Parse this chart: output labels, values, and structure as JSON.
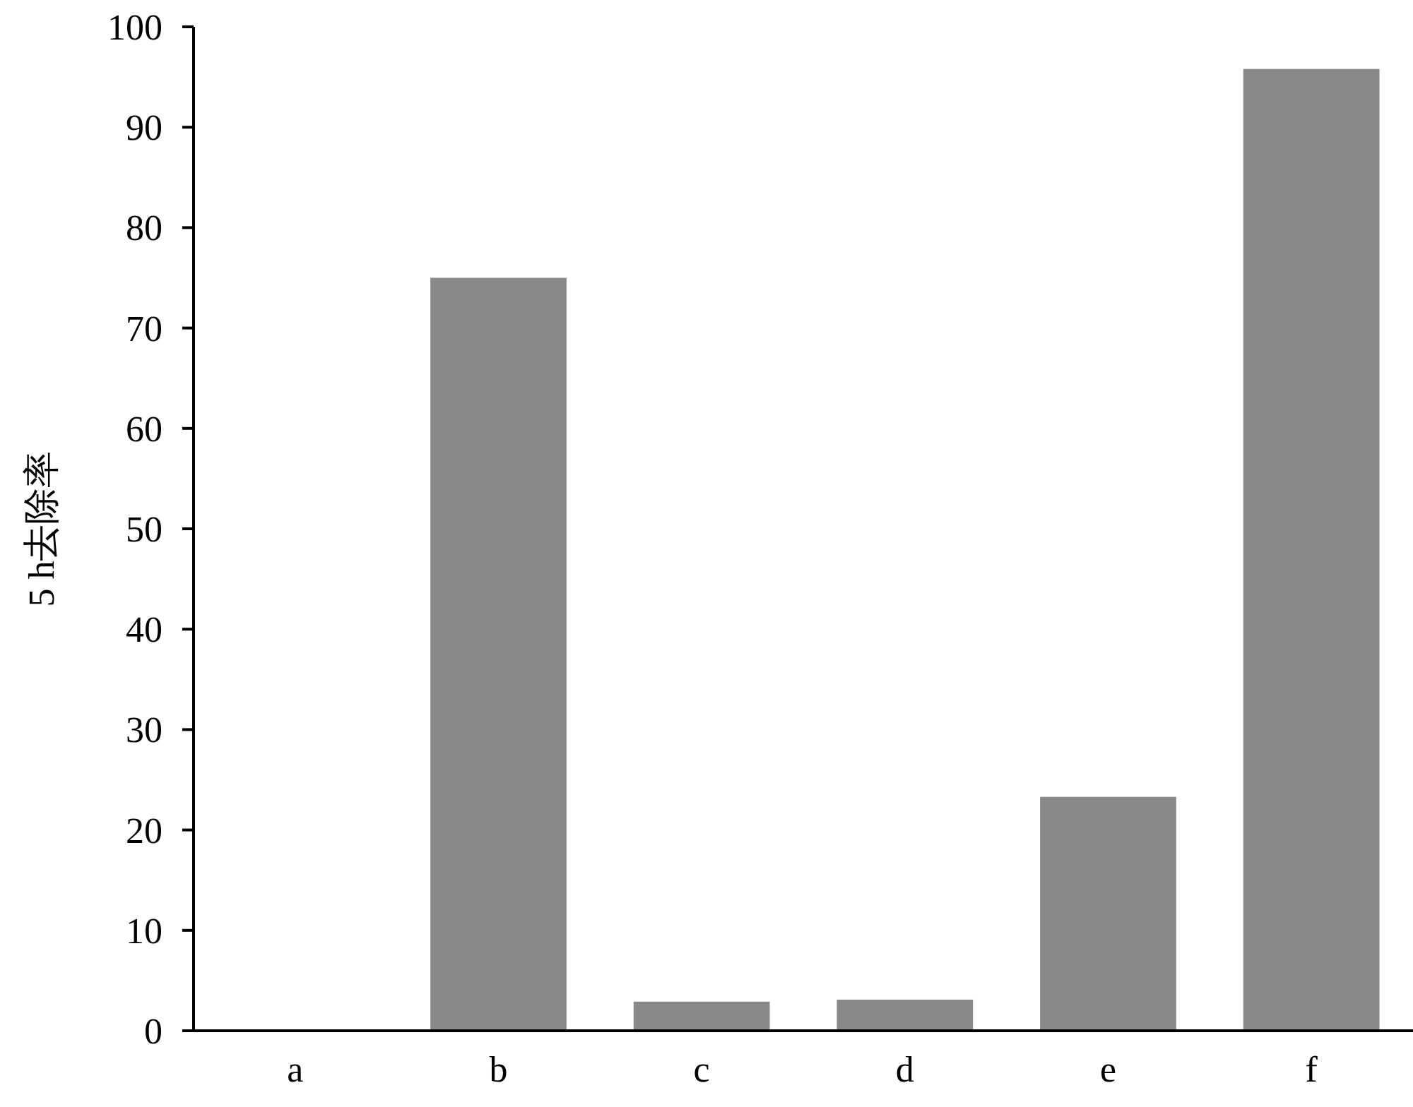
{
  "chart_data": {
    "type": "bar",
    "ylabel": "5 h去除率",
    "categories": [
      "a",
      "b",
      "c",
      "d",
      "e",
      "f"
    ],
    "values": [
      0,
      75,
      2.9,
      3.1,
      23.3,
      95.8
    ],
    "color": "#898989",
    "ylim": [
      0,
      100
    ],
    "yticks": [
      0,
      10,
      20,
      30,
      40,
      50,
      60,
      70,
      80,
      90,
      100
    ],
    "grid": false
  }
}
